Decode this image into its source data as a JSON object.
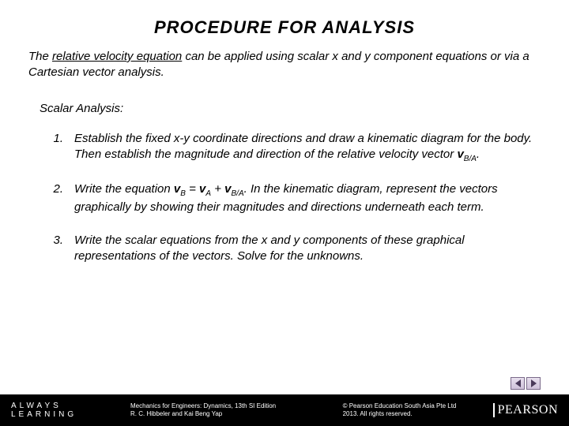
{
  "title": "PROCEDURE  FOR  ANALYSIS",
  "intro_pre": "The ",
  "intro_ul": "relative velocity equation",
  "intro_post": " can be applied using scalar x and y component equations or via a Cartesian vector analysis.",
  "subhead": "Scalar Analysis:",
  "steps": {
    "s1_num": "1.",
    "s1_a": "Establish the fixed x-y coordinate directions and draw a kinematic diagram for the body. Then establish the magnitude and direction of the relative velocity vector ",
    "s1_v": "v",
    "s1_sub": "B/A",
    "s1_end": ".",
    "s2_num": "2.",
    "s2_a": "Write the equation ",
    "s2_v1": "v",
    "s2_sub1": "B",
    "s2_eq": " = ",
    "s2_v2": "v",
    "s2_sub2": "A",
    "s2_plus": " + ",
    "s2_v3": "v",
    "s2_sub3": "B/A",
    "s2_b": ".  In the kinematic diagram, represent the vectors graphically by showing their magnitudes and directions underneath each term.",
    "s3_num": "3.",
    "s3_a": "Write the scalar equations from the x and y components of these graphical representations of the vectors.  Solve for the unknowns."
  },
  "footer": {
    "tagline": "ALWAYS LEARNING",
    "mid1": "Mechanics for Engineers: Dynamics, 13th SI Edition",
    "mid2": "R. C. Hibbeler and Kai Beng Yap",
    "right1": "© Pearson Education South Asia Pte Ltd",
    "right2": "2013. All rights reserved.",
    "logo": "PEARSON"
  }
}
